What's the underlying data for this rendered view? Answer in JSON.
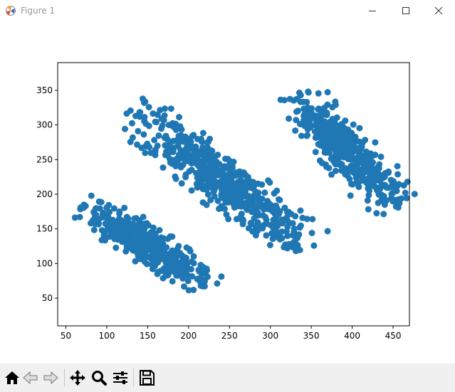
{
  "window": {
    "title": "Figure 1"
  },
  "icons": {
    "app": "matplotlib-icon",
    "minimize": "minimize-icon",
    "maximize": "maximize-icon",
    "close": "close-icon",
    "home": "home-icon",
    "back": "back-arrow-icon",
    "forward": "forward-arrow-icon",
    "pan": "pan-icon",
    "zoom": "zoom-icon",
    "configure": "configure-subplots-icon",
    "save": "save-icon"
  },
  "chart_data": {
    "type": "scatter",
    "color": "#1f77b4",
    "xlim": [
      40,
      470
    ],
    "ylim": [
      10,
      390
    ],
    "x_ticks": [
      50,
      100,
      150,
      200,
      250,
      300,
      350,
      400,
      450
    ],
    "y_ticks": [
      50,
      100,
      150,
      200,
      250,
      300,
      350
    ],
    "grid": false,
    "clusters": [
      {
        "center": [
          150,
          125
        ],
        "spread": [
          48,
          12
        ],
        "angle_deg": -38,
        "n": 450
      },
      {
        "center": [
          240,
          220
        ],
        "spread": [
          72,
          16
        ],
        "angle_deg": -42,
        "n": 600
      },
      {
        "center": [
          390,
          265
        ],
        "spread": [
          52,
          14
        ],
        "angle_deg": -52,
        "n": 450
      }
    ]
  }
}
